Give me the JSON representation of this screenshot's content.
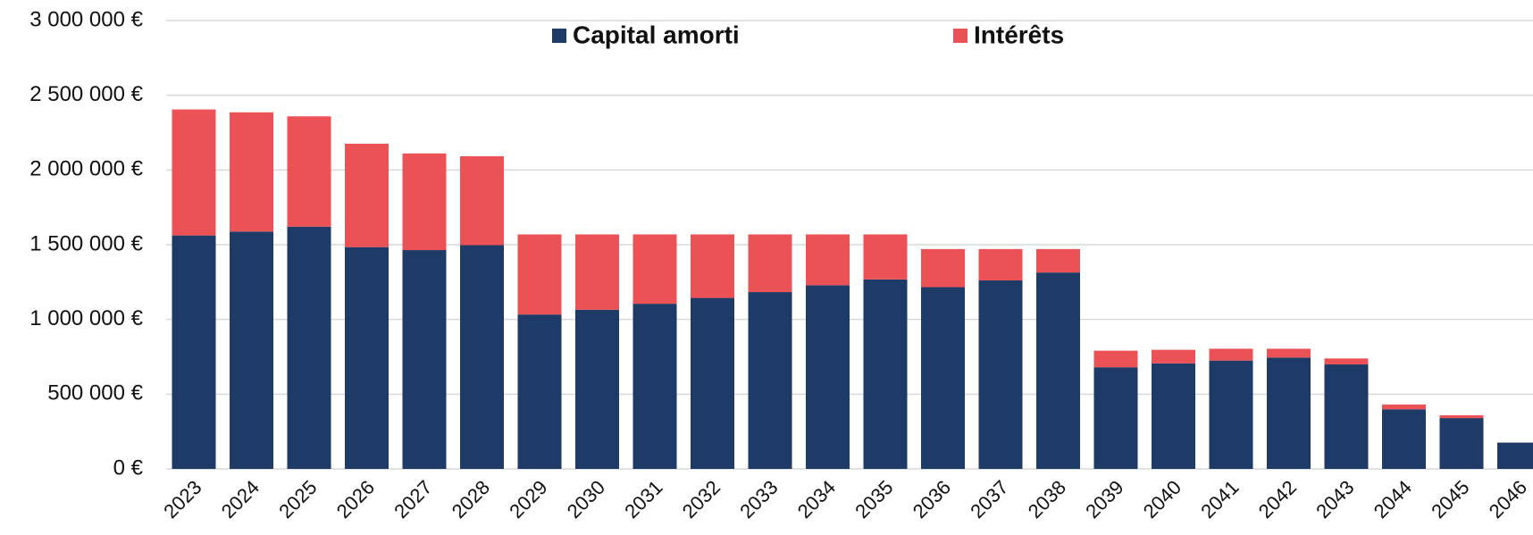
{
  "chart_data": {
    "type": "stacked_bar",
    "categories": [
      "2023",
      "2024",
      "2025",
      "2026",
      "2027",
      "2028",
      "2029",
      "2030",
      "2031",
      "2032",
      "2033",
      "2034",
      "2035",
      "2036",
      "2037",
      "2038",
      "2039",
      "2040",
      "2041",
      "2042",
      "2043",
      "2044",
      "2045",
      "2046"
    ],
    "series": [
      {
        "name": "Capital amorti",
        "color": "#1e3a66",
        "values": [
          1562000,
          1588000,
          1621000,
          1484000,
          1464000,
          1497000,
          1033000,
          1065000,
          1105000,
          1144000,
          1183000,
          1229000,
          1268000,
          1216000,
          1261000,
          1314000,
          680000,
          706000,
          725000,
          745000,
          699000,
          399000,
          340000,
          176000
        ]
      },
      {
        "name": "Intérêts",
        "color": "#eb5256",
        "values": [
          843000,
          798000,
          738000,
          692000,
          647000,
          595000,
          536000,
          504000,
          464000,
          425000,
          386000,
          340000,
          301000,
          255000,
          210000,
          157000,
          111000,
          91000,
          79000,
          59000,
          40000,
          32000,
          19000,
          0
        ]
      }
    ],
    "ylim": [
      0,
      3000000
    ],
    "yticks": [
      {
        "value": 0,
        "label": "0 €"
      },
      {
        "value": 500000,
        "label": "500 000 €"
      },
      {
        "value": 1000000,
        "label": "1 000 000 €"
      },
      {
        "value": 1500000,
        "label": "1 500 000 €"
      },
      {
        "value": 2000000,
        "label": "2 000 000 €"
      },
      {
        "value": 2500000,
        "label": "2 500 000 €"
      },
      {
        "value": 3000000,
        "label": "3 000 000 €"
      }
    ],
    "grid": true,
    "legend": "top"
  }
}
